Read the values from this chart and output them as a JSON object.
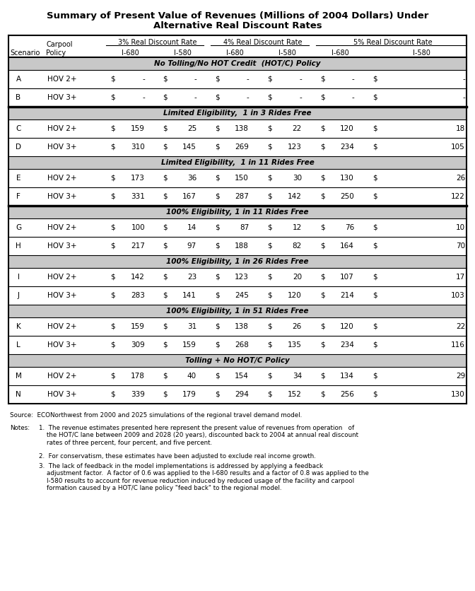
{
  "title_line1": "Summary of Present Value of Revenues (Millions of 2004 Dollars) Under",
  "title_line2": "Alternative Real Discount Rates",
  "sections": [
    {
      "label": "No Tolling/No HOT Credit  (HOT/C) Policy",
      "rows": [
        [
          "A",
          "HOV 2+",
          "-",
          "-",
          "-",
          "-",
          "-",
          "-"
        ],
        [
          "B",
          "HOV 3+",
          "-",
          "-",
          "-",
          "-",
          "-",
          "-"
        ]
      ],
      "thick_after": true
    },
    {
      "label": "Limited Eligibility,  1 in 3 Rides Free",
      "rows": [
        [
          "C",
          "HOV 2+",
          "159",
          "25",
          "138",
          "22",
          "120",
          "18"
        ],
        [
          "D",
          "HOV 3+",
          "310",
          "145",
          "269",
          "123",
          "234",
          "105"
        ]
      ],
      "thick_after": false
    },
    {
      "label": "Limited Eligibility,  1 in 11 Rides Free",
      "rows": [
        [
          "E",
          "HOV 2+",
          "173",
          "36",
          "150",
          "30",
          "130",
          "26"
        ],
        [
          "F",
          "HOV 3+",
          "331",
          "167",
          "287",
          "142",
          "250",
          "122"
        ]
      ],
      "thick_after": true
    },
    {
      "label": "100% Eligibility, 1 in 11 Rides Free",
      "rows": [
        [
          "G",
          "HOV 2+",
          "100",
          "14",
          "87",
          "12",
          "76",
          "10"
        ],
        [
          "H",
          "HOV 3+",
          "217",
          "97",
          "188",
          "82",
          "164",
          "70"
        ]
      ],
      "thick_after": false
    },
    {
      "label": "100% Eligibility, 1 in 26 Rides Free",
      "rows": [
        [
          "I",
          "HOV 2+",
          "142",
          "23",
          "123",
          "20",
          "107",
          "17"
        ],
        [
          "J",
          "HOV 3+",
          "283",
          "141",
          "245",
          "120",
          "214",
          "103"
        ]
      ],
      "thick_after": false
    },
    {
      "label": "100% Eligibility, 1 in 51 Rides Free",
      "rows": [
        [
          "K",
          "HOV 2+",
          "159",
          "31",
          "138",
          "26",
          "120",
          "22"
        ],
        [
          "L",
          "HOV 3+",
          "309",
          "159",
          "268",
          "135",
          "234",
          "116"
        ]
      ],
      "thick_after": false
    },
    {
      "label": "Tolling + No HOT/C Policy",
      "rows": [
        [
          "M",
          "HOV 2+",
          "178",
          "40",
          "154",
          "34",
          "134",
          "29"
        ],
        [
          "N",
          "HOV 3+",
          "339",
          "179",
          "294",
          "152",
          "256",
          "130"
        ]
      ],
      "thick_after": false
    }
  ],
  "source_text": "Source:  ECONorthwest from 2000 and 2025 simulations of the regional travel demand model.",
  "note1_label": "Notes:",
  "note1": "1.  The revenue estimates presented here represent the present value of revenues from operation   of\n    the HOT/C lane between 2009 and 2028 (20 years), discounted back to 2004 at annual real discount\n    rates of three percent, four percent, and five percent.",
  "note2": "2.  For conservatism, these estimates have been adjusted to exclude real income growth.",
  "note3": "3.  The lack of feedback in the model implementations is addressed by applying a feedback\n    adjustment factor.  A factor of 0.6 was applied to the I-680 results and a factor of 0.8 was applied to the\n    I-580 results to account for revenue reduction induced by reduced usage of the facility and carpool\n    formation caused by a HOT/C lane policy \"feed back\" to the regional model.",
  "gray_color": "#c8c8c8",
  "thick_lw": 2.5,
  "thin_lw": 0.8,
  "border_lw": 1.5
}
